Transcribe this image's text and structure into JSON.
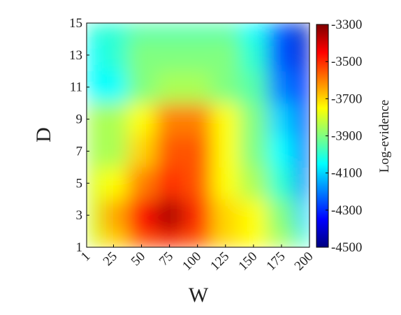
{
  "chart_data": {
    "type": "heatmap",
    "x": [
      1,
      25,
      50,
      75,
      100,
      125,
      150,
      175,
      200
    ],
    "y": [
      1,
      3,
      5,
      7,
      9,
      11,
      13,
      15
    ],
    "z": [
      [
        -3800,
        -3700,
        -3550,
        -3500,
        -3550,
        -3700,
        -3750,
        -3850,
        -4000
      ],
      [
        -3800,
        -3650,
        -3450,
        -3350,
        -3500,
        -3700,
        -3750,
        -3900,
        -4100
      ],
      [
        -3800,
        -3750,
        -3600,
        -3500,
        -3550,
        -3750,
        -3850,
        -4000,
        -4200
      ],
      [
        -3850,
        -3850,
        -3700,
        -3550,
        -3550,
        -3750,
        -3900,
        -4050,
        -4250
      ],
      [
        -3850,
        -3850,
        -3750,
        -3600,
        -3600,
        -3750,
        -3900,
        -4100,
        -4300
      ],
      [
        -4050,
        -4050,
        -3900,
        -3850,
        -3850,
        -3900,
        -3950,
        -4200,
        -4350
      ],
      [
        -4050,
        -4000,
        -3900,
        -3900,
        -3900,
        -3900,
        -4000,
        -4250,
        -4400
      ],
      [
        -4000,
        -4000,
        -3950,
        -3950,
        -3950,
        -3950,
        -4050,
        -4250,
        -4450
      ]
    ],
    "xlabel": "W",
    "ylabel": "D",
    "colorbar_label": "Log-evidence",
    "xlim": [
      1,
      200
    ],
    "ylim": [
      1,
      15
    ],
    "xticks": [
      1,
      25,
      50,
      75,
      100,
      125,
      150,
      175,
      200
    ],
    "yticks": [
      1,
      3,
      5,
      7,
      9,
      11,
      13,
      15
    ],
    "clim": [
      -4500,
      -3300
    ],
    "cticks": [
      -4500,
      -4300,
      -4100,
      -3900,
      -3700,
      -3500,
      -3300
    ],
    "colormap": "jet"
  }
}
